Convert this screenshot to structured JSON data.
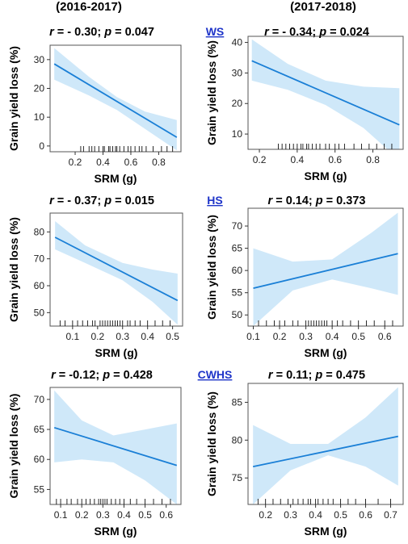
{
  "headers": {
    "left": "(2016-2017)",
    "right": "(2017-2018)"
  },
  "colors": {
    "line": "#1a7fd6",
    "band": "#cfe8f9",
    "frame": "#555555",
    "condition": "#1f35c9"
  },
  "chart_data": [
    {
      "type": "line",
      "condition": "WS",
      "stat": "r = - 0.30; p = 0.047",
      "xlabel": "SRM (g)",
      "ylabel": "Grain yield loss (%)",
      "xlim": [
        0.02,
        0.96
      ],
      "ylim": [
        -2,
        35
      ],
      "xticks": [
        0.2,
        0.4,
        0.6,
        0.8
      ],
      "yticks": [
        0,
        10,
        20,
        30
      ],
      "fit": {
        "x": [
          0.05,
          0.93
        ],
        "y": [
          28.5,
          3
        ]
      },
      "band": {
        "x": [
          0.05,
          0.3,
          0.5,
          0.7,
          0.93
        ],
        "lower": [
          23,
          17.5,
          12.5,
          6,
          -1.5
        ],
        "upper": [
          34,
          24,
          17,
          12,
          9
        ]
      },
      "rug": [
        0.24,
        0.26,
        0.3,
        0.32,
        0.34,
        0.37,
        0.4,
        0.41,
        0.44,
        0.45,
        0.47,
        0.49,
        0.5,
        0.52,
        0.55,
        0.58,
        0.6,
        0.63,
        0.66,
        0.68,
        0.71,
        0.76,
        0.82,
        0.86,
        0.9
      ]
    },
    {
      "type": "line",
      "condition": "",
      "stat": "r = - 0.34; p = 0.024",
      "xlabel": "SRM (g)",
      "ylabel": "Grain yield loss (%)",
      "xlim": [
        0.14,
        0.96
      ],
      "ylim": [
        5,
        42
      ],
      "xticks": [
        0.2,
        0.4,
        0.6,
        0.8
      ],
      "yticks": [
        10,
        20,
        30,
        40
      ],
      "fit": {
        "x": [
          0.16,
          0.94
        ],
        "y": [
          34,
          13
        ]
      },
      "band": {
        "x": [
          0.16,
          0.35,
          0.55,
          0.75,
          0.94
        ],
        "lower": [
          27.5,
          24.5,
          19.5,
          12,
          1.5
        ],
        "upper": [
          41,
          33,
          27.5,
          25.5,
          25
        ]
      },
      "rug": [
        0.3,
        0.32,
        0.34,
        0.36,
        0.38,
        0.4,
        0.42,
        0.43,
        0.45,
        0.46,
        0.48,
        0.5,
        0.52,
        0.55,
        0.57,
        0.6,
        0.62,
        0.65,
        0.7,
        0.74,
        0.78,
        0.82,
        0.86,
        0.9
      ]
    },
    {
      "type": "line",
      "condition": "HS",
      "stat": "r = - 0.37; p = 0.015",
      "xlabel": "SRM (g)",
      "ylabel": "Grain yield loss (%)",
      "xlim": [
        0.01,
        0.54
      ],
      "ylim": [
        45,
        87
      ],
      "xticks": [
        0.1,
        0.2,
        0.3,
        0.4,
        0.5
      ],
      "yticks": [
        50,
        60,
        70,
        80
      ],
      "fit": {
        "x": [
          0.03,
          0.52
        ],
        "y": [
          78,
          54.5
        ]
      },
      "band": {
        "x": [
          0.03,
          0.15,
          0.3,
          0.42,
          0.52
        ],
        "lower": [
          73.5,
          68.5,
          62,
          54,
          45.5
        ],
        "upper": [
          84,
          75,
          68.5,
          66,
          64.5
        ]
      },
      "rug": [
        0.05,
        0.07,
        0.1,
        0.12,
        0.14,
        0.16,
        0.18,
        0.19,
        0.21,
        0.22,
        0.23,
        0.24,
        0.25,
        0.26,
        0.27,
        0.28,
        0.29,
        0.3,
        0.32,
        0.33,
        0.35,
        0.37,
        0.4,
        0.43,
        0.46,
        0.49
      ]
    },
    {
      "type": "line",
      "condition": "",
      "stat": "r = 0.14; p = 0.373",
      "xlabel": "SRM (g)",
      "ylabel": "Grain yield loss (%)",
      "xlim": [
        0.08,
        0.67
      ],
      "ylim": [
        47.5,
        74
      ],
      "xticks": [
        0.1,
        0.2,
        0.3,
        0.4,
        0.5,
        0.6
      ],
      "yticks": [
        50,
        55,
        60,
        65,
        70
      ],
      "fit": {
        "x": [
          0.1,
          0.65
        ],
        "y": [
          56,
          63.8
        ]
      },
      "band": {
        "x": [
          0.1,
          0.25,
          0.4,
          0.55,
          0.65
        ],
        "lower": [
          47.5,
          55.5,
          58,
          56,
          54.5
        ],
        "upper": [
          65,
          62,
          62.5,
          68.5,
          73
        ]
      },
      "rug": [
        0.12,
        0.15,
        0.18,
        0.2,
        0.22,
        0.25,
        0.27,
        0.3,
        0.31,
        0.32,
        0.33,
        0.34,
        0.35,
        0.36,
        0.37,
        0.38,
        0.4,
        0.42,
        0.44,
        0.47,
        0.5,
        0.53,
        0.56,
        0.6,
        0.63
      ]
    },
    {
      "type": "line",
      "condition": "CWHS",
      "stat": "r = -0.12; p = 0.428",
      "xlabel": "SRM (g)",
      "ylabel": "Grain yield loss (%)",
      "xlim": [
        0.05,
        0.67
      ],
      "ylim": [
        52.5,
        72
      ],
      "xticks": [
        0.1,
        0.2,
        0.3,
        0.4,
        0.5,
        0.6
      ],
      "yticks": [
        55,
        60,
        65,
        70
      ],
      "fit": {
        "x": [
          0.07,
          0.65
        ],
        "y": [
          65.3,
          59
        ]
      },
      "band": {
        "x": [
          0.07,
          0.2,
          0.35,
          0.5,
          0.65
        ],
        "lower": [
          59.5,
          60,
          59.5,
          56.5,
          52.5
        ],
        "upper": [
          71.5,
          66.5,
          64,
          65,
          66
        ]
      },
      "rug": [
        0.08,
        0.1,
        0.13,
        0.15,
        0.18,
        0.2,
        0.22,
        0.24,
        0.26,
        0.28,
        0.29,
        0.3,
        0.31,
        0.32,
        0.34,
        0.36,
        0.38,
        0.4,
        0.43,
        0.46,
        0.5,
        0.54,
        0.58,
        0.62
      ]
    },
    {
      "type": "line",
      "condition": "",
      "stat": "r = 0.11; p = 0.475",
      "xlabel": "SRM (g)",
      "ylabel": "Grain yield loss (%)",
      "xlim": [
        0.13,
        0.75
      ],
      "ylim": [
        71.5,
        87.5
      ],
      "xticks": [
        0.2,
        0.3,
        0.4,
        0.5,
        0.6,
        0.7
      ],
      "yticks": [
        75,
        80,
        85
      ],
      "fit": {
        "x": [
          0.15,
          0.73
        ],
        "y": [
          76.5,
          80.5
        ]
      },
      "band": {
        "x": [
          0.15,
          0.3,
          0.45,
          0.6,
          0.73
        ],
        "lower": [
          71.5,
          76,
          78,
          76.5,
          74
        ],
        "upper": [
          82,
          79.5,
          79.5,
          83,
          87
        ]
      },
      "rug": [
        0.17,
        0.2,
        0.23,
        0.26,
        0.29,
        0.31,
        0.33,
        0.35,
        0.37,
        0.38,
        0.4,
        0.41,
        0.43,
        0.45,
        0.47,
        0.5,
        0.53,
        0.56,
        0.6,
        0.65,
        0.7
      ]
    }
  ]
}
